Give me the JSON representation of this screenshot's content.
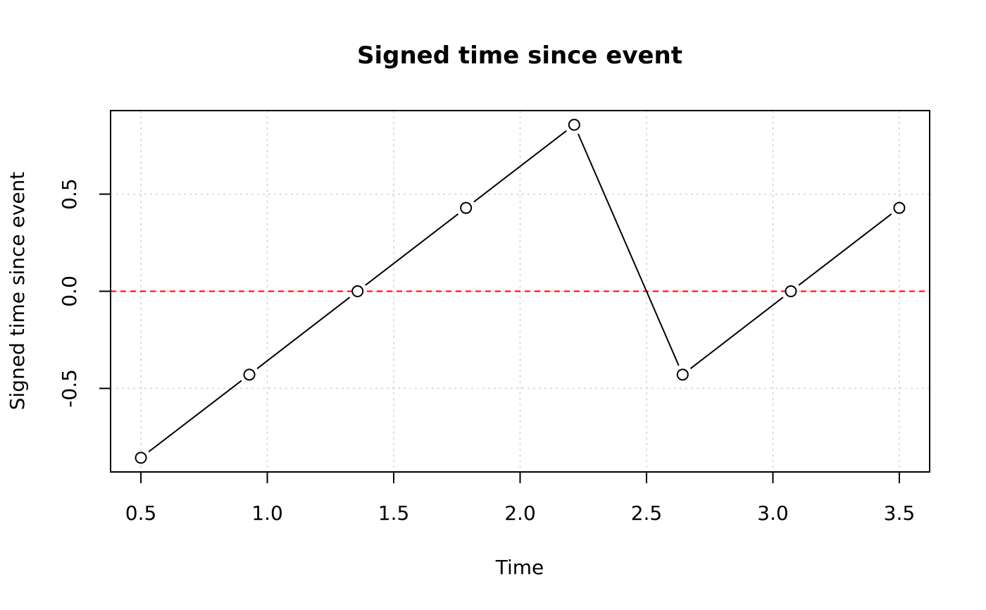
{
  "chart_data": {
    "type": "line",
    "title": "Signed time since event",
    "xlabel": "Time",
    "ylabel": "Signed time since event",
    "xlim": [
      0.38,
      3.62
    ],
    "ylim": [
      -0.93,
      0.93
    ],
    "x_ticks": [
      0.5,
      1.0,
      1.5,
      2.0,
      2.5,
      3.0,
      3.5
    ],
    "x_tick_labels": [
      "0.5",
      "1.0",
      "1.5",
      "2.0",
      "2.5",
      "3.0",
      "3.5"
    ],
    "y_ticks": [
      -0.5,
      0.0,
      0.5
    ],
    "y_tick_labels": [
      "-0.5",
      "0.0",
      "0.5"
    ],
    "grid": true,
    "series": [
      {
        "x": [
          0.5,
          0.929,
          1.357,
          1.786,
          2.214,
          2.643,
          3.071,
          3.5
        ],
        "y": [
          -0.857,
          -0.429,
          0.0,
          0.429,
          0.857,
          -0.429,
          0.0,
          0.429
        ],
        "marker": "open-circle",
        "color": "#000000"
      }
    ],
    "reference_line": {
      "y": 0.0,
      "style": "dashed",
      "color": "#ff0000"
    }
  }
}
